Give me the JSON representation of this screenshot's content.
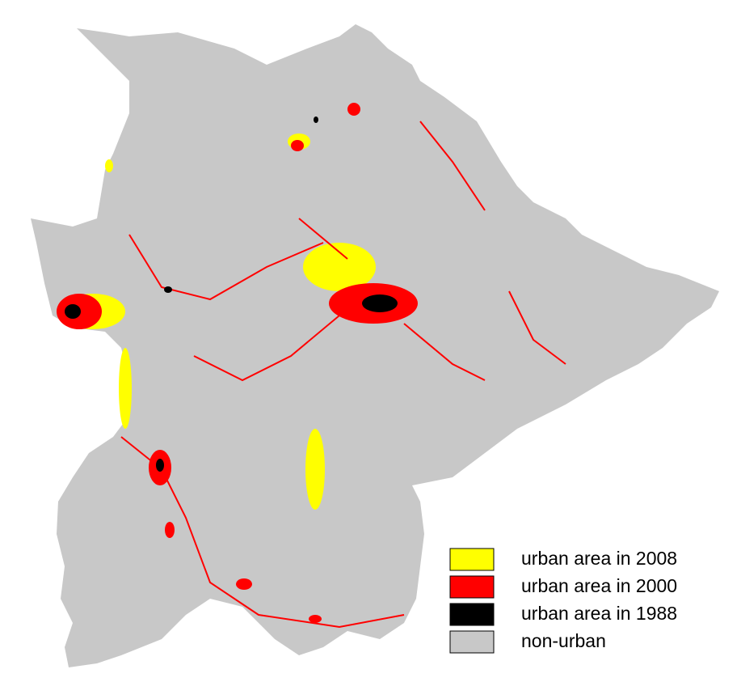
{
  "legend": [
    {
      "label": "urban area in 2008",
      "color": "#ffff00"
    },
    {
      "label": "urban area in 2000",
      "color": "#ff0000"
    },
    {
      "label": "urban area in 1988",
      "color": "#000000"
    },
    {
      "label": "non-urban",
      "color": "#c8c8c8"
    }
  ]
}
